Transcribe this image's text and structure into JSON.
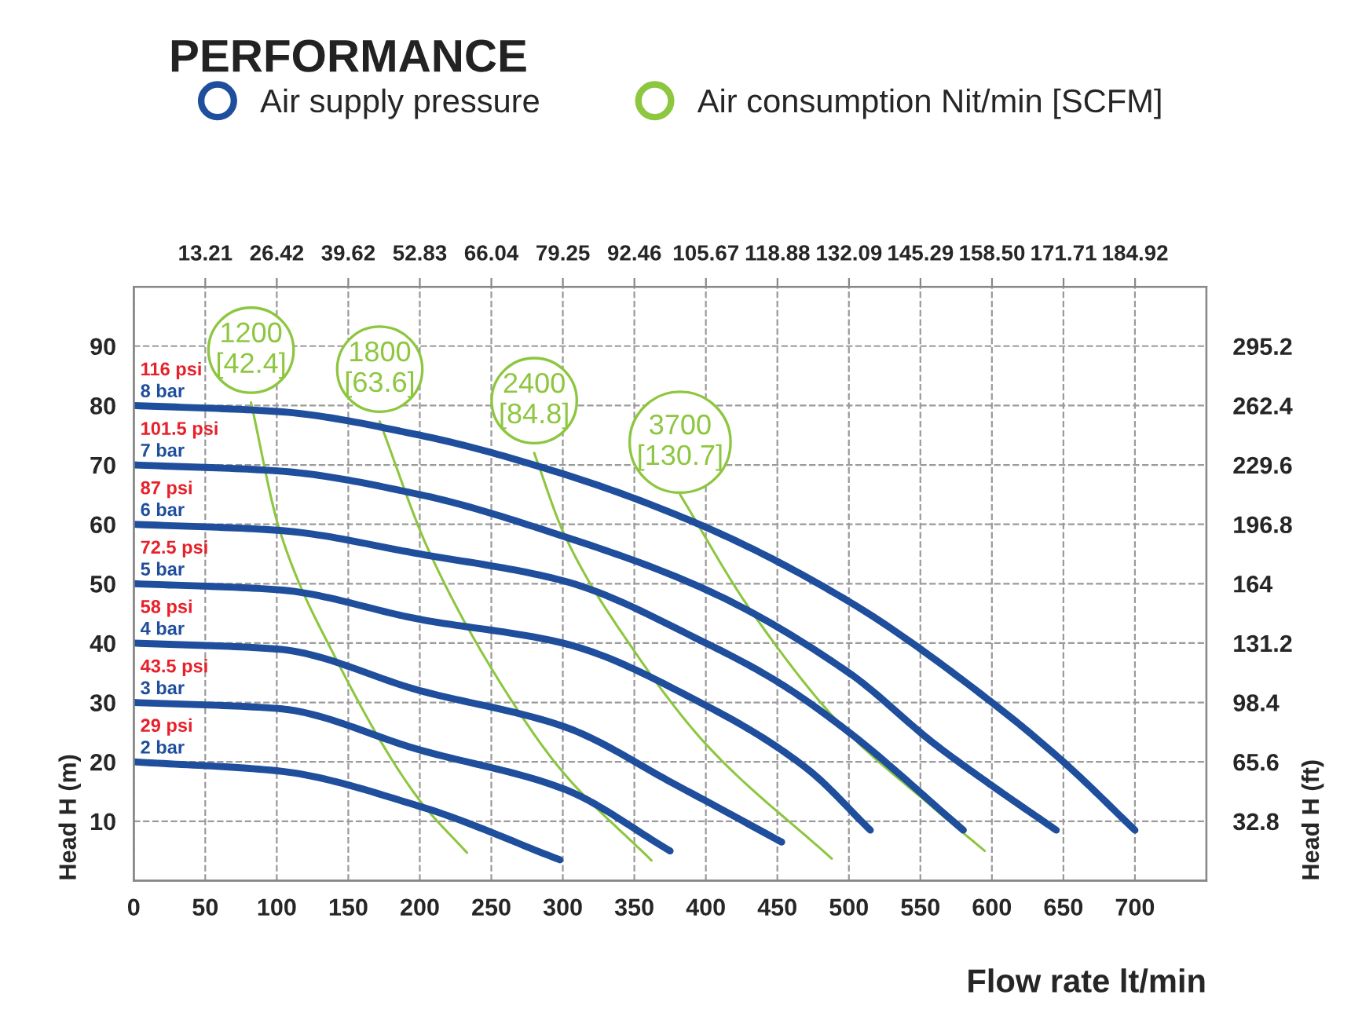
{
  "chart_data": {
    "type": "line",
    "title": "PERFORMANCE",
    "xlabel": "Flow rate lt/min",
    "ylabel": "Head H (m)",
    "y2label": "Head H (ft)",
    "xlim": [
      0,
      750
    ],
    "xticks": [
      0,
      50,
      100,
      150,
      200,
      250,
      300,
      350,
      400,
      450,
      500,
      550,
      600,
      650,
      700
    ],
    "ylim": [
      0,
      100
    ],
    "yticks": [
      10,
      20,
      30,
      40,
      50,
      60,
      70,
      80,
      90
    ],
    "y2lim": [
      0,
      328
    ],
    "y2ticks": [
      32.8,
      65.6,
      98.4,
      131.2,
      164,
      196.8,
      229.6,
      262.4,
      295.2
    ],
    "x2lim": [
      0,
      198.1
    ],
    "x2ticks": [
      13.21,
      26.42,
      39.62,
      52.83,
      66.04,
      79.25,
      92.46,
      105.67,
      118.88,
      132.09,
      145.29,
      {
        "value": 158.5,
        "label": "158.50"
      },
      171.71,
      184.92
    ],
    "grid": true,
    "legend": "top left",
    "marker": "none",
    "line_style": "solid",
    "series": [
      {
        "name": "Air supply pressure",
        "color": "#1f4e9c",
        "x": [
          0,
          100,
          200,
          300,
          400,
          500,
          600,
          650,
          700
        ],
        "values": [
          80,
          79,
          75,
          68.5,
          59.5,
          47,
          30,
          20,
          8.5
        ]
      },
      {
        "color": "#1f4e9c",
        "x": [
          0,
          100,
          200,
          300,
          400,
          500,
          560,
          600,
          645
        ],
        "values": [
          70,
          69,
          65,
          58,
          49,
          35,
          23,
          16,
          8.5
        ]
      },
      {
        "color": "#1f4e9c",
        "x": [
          0,
          100,
          200,
          300,
          400,
          450,
          500,
          580
        ],
        "values": [
          60,
          59,
          55,
          50.5,
          40,
          33.5,
          25,
          8.5
        ]
      },
      {
        "color": "#1f4e9c",
        "x": [
          0,
          100,
          200,
          300,
          400,
          470,
          515
        ],
        "values": [
          50,
          49,
          44,
          40,
          29.5,
          19,
          8.5
        ]
      },
      {
        "color": "#1f4e9c",
        "x": [
          0,
          100,
          200,
          300,
          380,
          453
        ],
        "values": [
          40,
          39,
          32,
          26,
          16,
          6.5
        ]
      },
      {
        "color": "#1f4e9c",
        "x": [
          0,
          100,
          200,
          300,
          375
        ],
        "values": [
          30,
          29,
          22,
          15.5,
          5
        ]
      },
      {
        "color": "#1f4e9c",
        "x": [
          0,
          100,
          200,
          298
        ],
        "values": [
          20,
          18.5,
          12.5,
          3.5
        ]
      },
      {
        "name": "Air consumption Nit/min [SCFM]",
        "color": "#8dc63f",
        "x": [
          82,
          102,
          140,
          200,
          233
        ],
        "values": [
          80.5,
          59,
          38,
          13.5,
          4.7
        ]
      },
      {
        "color": "#8dc63f",
        "x": [
          172,
          206,
          265,
          301,
          362
        ],
        "values": [
          77.3,
          55.7,
          30,
          18,
          3.4
        ]
      },
      {
        "color": "#8dc63f",
        "x": [
          280,
          301,
          349,
          400,
          488
        ],
        "values": [
          72,
          58.3,
          39,
          23,
          3.7
        ]
      },
      {
        "color": "#8dc63f",
        "x": [
          382,
          430,
          499,
          557,
          595
        ],
        "values": [
          65,
          46,
          25,
          12.7,
          5
        ]
      }
    ],
    "annotations": [
      {
        "text": "1200\n[42.4]",
        "x": 82,
        "y": 80.5
      },
      {
        "text": "1800\n[63.6]",
        "x": 172,
        "y": 77.3
      },
      {
        "text": "2400\n[84.8]",
        "x": 280,
        "y": 72
      },
      {
        "text": "3700\n[130.7]",
        "x": 382,
        "y": 65
      },
      {
        "text": "116 psi",
        "x": 0,
        "y": 80
      },
      {
        "text": "8 bar",
        "x": 0,
        "y": 80
      },
      {
        "text": "101.5 psi",
        "x": 0,
        "y": 70
      },
      {
        "text": "7 bar",
        "x": 0,
        "y": 70
      },
      {
        "text": "87 psi",
        "x": 0,
        "y": 60
      },
      {
        "text": "6 bar",
        "x": 0,
        "y": 60
      },
      {
        "text": "72.5 psi",
        "x": 0,
        "y": 50
      },
      {
        "text": "5 bar",
        "x": 0,
        "y": 50
      },
      {
        "text": "58 psi",
        "x": 0,
        "y": 40
      },
      {
        "text": "4 bar",
        "x": 0,
        "y": 40
      },
      {
        "text": "43.5 psi",
        "x": 0,
        "y": 30
      },
      {
        "text": "3 bar",
        "x": 0,
        "y": 30
      },
      {
        "text": "29 psi",
        "x": 0,
        "y": 20
      },
      {
        "text": "2 bar",
        "x": 0,
        "y": 20
      }
    ]
  }
}
